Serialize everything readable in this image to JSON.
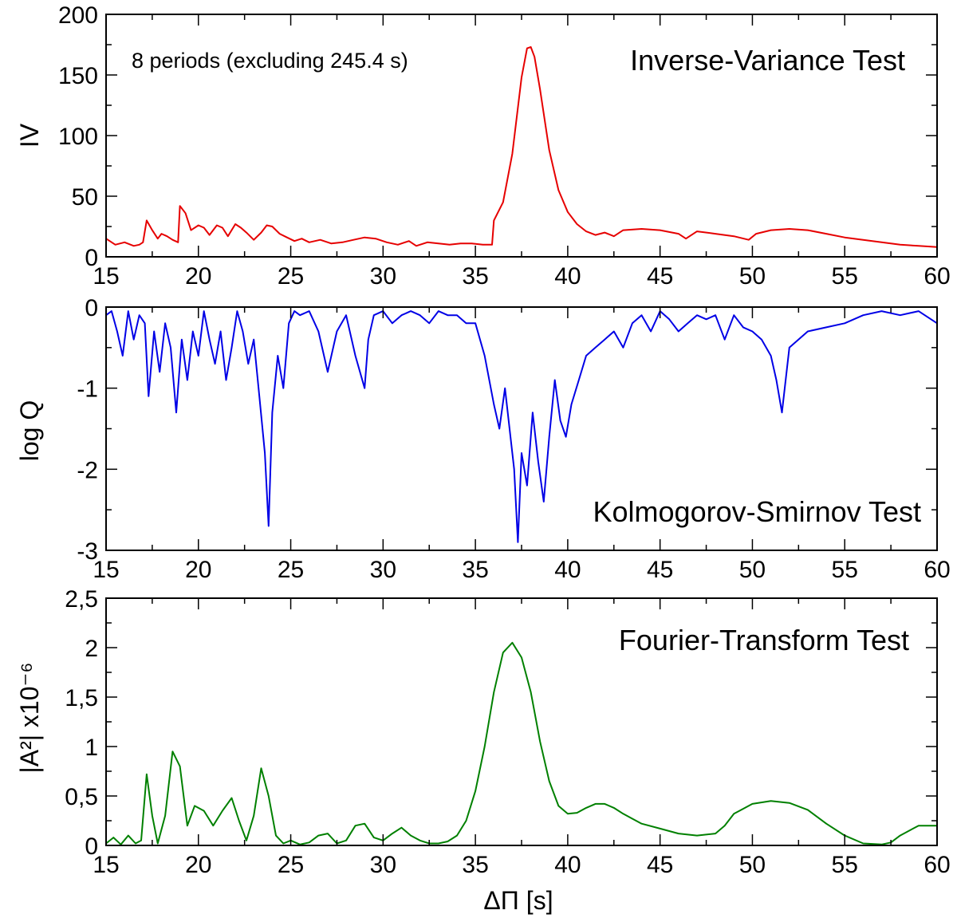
{
  "chart_data": [
    {
      "type": "line",
      "title": "Inverse-Variance Test",
      "annotation": "8 periods (excluding 245.4 s)",
      "xlabel": "",
      "ylabel": "IV",
      "xlim": [
        15,
        60
      ],
      "ylim": [
        0,
        200
      ],
      "xticks": [
        15,
        20,
        25,
        30,
        35,
        40,
        45,
        50,
        55,
        60
      ],
      "yticks": [
        0,
        50,
        100,
        150,
        200
      ],
      "ytick_labels": [
        "0",
        "50",
        "100",
        "150",
        "200"
      ],
      "color": "#e60000",
      "x": [
        15,
        15.5,
        16,
        16.5,
        16.8,
        17.0,
        17.2,
        17.5,
        17.8,
        18.0,
        18.3,
        18.6,
        18.9,
        19.0,
        19.3,
        19.6,
        20.0,
        20.3,
        20.6,
        21.0,
        21.3,
        21.6,
        22.0,
        22.3,
        22.6,
        23.0,
        23.4,
        23.7,
        24.0,
        24.4,
        24.8,
        25.2,
        25.6,
        26.0,
        26.6,
        27.2,
        27.8,
        28.4,
        29.0,
        29.6,
        30.2,
        30.8,
        31.4,
        31.8,
        32.4,
        33.0,
        33.6,
        34.2,
        34.8,
        35.4,
        35.9,
        36.0,
        36.5,
        37.0,
        37.5,
        37.8,
        38.0,
        38.2,
        38.5,
        39.0,
        39.5,
        40.0,
        40.5,
        41.0,
        41.5,
        42.0,
        42.5,
        43.0,
        44.0,
        45.0,
        46.0,
        46.4,
        47.0,
        48.0,
        49.0,
        49.8,
        50.2,
        51.0,
        52.0,
        53.0,
        54.0,
        55.0,
        56.0,
        57.0,
        58.0,
        59.0,
        60.0
      ],
      "y": [
        15,
        10,
        12,
        9,
        10,
        12,
        30,
        22,
        15,
        19,
        17,
        14,
        12,
        42,
        36,
        22,
        26,
        24,
        18,
        26,
        24,
        17,
        27,
        24,
        20,
        14,
        20,
        26,
        25,
        19,
        16,
        13,
        15,
        12,
        14,
        11,
        12,
        14,
        16,
        15,
        12,
        10,
        13,
        9,
        12,
        11,
        10,
        11,
        11,
        10,
        10,
        30,
        45,
        85,
        148,
        172,
        173,
        165,
        138,
        88,
        55,
        37,
        27,
        21,
        18,
        20,
        17,
        22,
        23,
        22,
        19,
        15,
        21,
        19,
        17,
        14,
        19,
        22,
        23,
        22,
        19,
        16,
        14,
        12,
        10,
        9,
        8
      ]
    },
    {
      "type": "line",
      "title": "Kolmogorov-Smirnov Test",
      "xlabel": "",
      "ylabel": "log Q",
      "xlim": [
        15,
        60
      ],
      "ylim": [
        -3,
        0
      ],
      "xticks": [
        15,
        20,
        25,
        30,
        35,
        40,
        45,
        50,
        55,
        60
      ],
      "yticks": [
        -3,
        -2,
        -1,
        0
      ],
      "ytick_labels": [
        "-3",
        "-2",
        "-1",
        "0"
      ],
      "color": "#0000e6",
      "x": [
        15.0,
        15.3,
        15.6,
        15.9,
        16.2,
        16.5,
        16.8,
        17.1,
        17.3,
        17.6,
        17.9,
        18.2,
        18.5,
        18.8,
        19.1,
        19.4,
        19.7,
        20.0,
        20.3,
        20.6,
        20.9,
        21.2,
        21.5,
        21.8,
        22.1,
        22.4,
        22.7,
        23.0,
        23.3,
        23.6,
        23.8,
        24.0,
        24.3,
        24.6,
        24.9,
        25.2,
        25.5,
        26.0,
        26.5,
        27.0,
        27.5,
        28.0,
        28.5,
        29.0,
        29.2,
        29.5,
        30.0,
        30.5,
        31.0,
        31.5,
        32.0,
        32.5,
        33.0,
        33.5,
        34.0,
        34.5,
        35.0,
        35.5,
        36.0,
        36.3,
        36.6,
        36.9,
        37.1,
        37.3,
        37.5,
        37.8,
        38.1,
        38.4,
        38.7,
        39.0,
        39.3,
        39.6,
        39.9,
        40.2,
        40.6,
        41.0,
        41.5,
        42.0,
        42.5,
        43.0,
        43.5,
        44.0,
        44.5,
        45.0,
        45.5,
        46.0,
        46.5,
        47.0,
        47.5,
        48.0,
        48.5,
        49.0,
        49.5,
        50.0,
        50.5,
        51.0,
        51.3,
        51.6,
        52.0,
        53.0,
        54.0,
        55.0,
        56.0,
        57.0,
        58.0,
        59.0,
        60.0
      ],
      "y": [
        -0.1,
        -0.05,
        -0.3,
        -0.6,
        -0.05,
        -0.4,
        -0.1,
        -0.2,
        -1.1,
        -0.3,
        -0.8,
        -0.2,
        -0.5,
        -1.3,
        -0.4,
        -0.9,
        -0.3,
        -0.6,
        -0.05,
        -0.4,
        -0.7,
        -0.3,
        -0.9,
        -0.5,
        -0.05,
        -0.3,
        -0.7,
        -0.4,
        -1.1,
        -1.8,
        -2.7,
        -1.3,
        -0.6,
        -1.0,
        -0.2,
        -0.05,
        -0.1,
        -0.05,
        -0.3,
        -0.8,
        -0.3,
        -0.1,
        -0.6,
        -1.0,
        -0.4,
        -0.1,
        -0.05,
        -0.2,
        -0.1,
        -0.05,
        -0.1,
        -0.2,
        -0.05,
        -0.1,
        -0.1,
        -0.2,
        -0.2,
        -0.6,
        -1.2,
        -1.5,
        -1.0,
        -1.6,
        -2.0,
        -2.9,
        -1.8,
        -2.2,
        -1.3,
        -1.9,
        -2.4,
        -1.6,
        -0.9,
        -1.4,
        -1.6,
        -1.2,
        -0.9,
        -0.6,
        -0.5,
        -0.4,
        -0.3,
        -0.5,
        -0.2,
        -0.1,
        -0.3,
        -0.05,
        -0.15,
        -0.3,
        -0.2,
        -0.1,
        -0.15,
        -0.1,
        -0.4,
        -0.1,
        -0.25,
        -0.3,
        -0.4,
        -0.6,
        -0.9,
        -1.3,
        -0.5,
        -0.3,
        -0.25,
        -0.2,
        -0.1,
        -0.05,
        -0.1,
        -0.05,
        -0.2
      ]
    },
    {
      "type": "line",
      "title": "Fourier-Transform Test",
      "xlabel": "ΔΠ [s]",
      "ylabel": "|A²| x10⁻⁶",
      "xlim": [
        15,
        60
      ],
      "ylim": [
        0,
        2.5
      ],
      "xticks": [
        15,
        20,
        25,
        30,
        35,
        40,
        45,
        50,
        55,
        60
      ],
      "yticks": [
        0,
        0.5,
        1,
        1.5,
        2,
        2.5
      ],
      "ytick_labels": [
        "0",
        "0,5",
        "1",
        "1,5",
        "2",
        "2,5"
      ],
      "color": "#008000",
      "x": [
        15.0,
        15.4,
        15.8,
        16.2,
        16.6,
        16.9,
        17.2,
        17.5,
        17.8,
        18.2,
        18.6,
        19.0,
        19.4,
        19.8,
        20.3,
        20.8,
        21.3,
        21.8,
        22.2,
        22.6,
        23.0,
        23.4,
        23.8,
        24.2,
        24.6,
        25.0,
        25.5,
        26.0,
        26.5,
        27.0,
        27.5,
        28.0,
        28.5,
        29.0,
        29.5,
        30.0,
        30.5,
        31.0,
        31.5,
        32.0,
        32.5,
        33.0,
        33.5,
        34.0,
        34.5,
        35.0,
        35.5,
        36.0,
        36.5,
        37.0,
        37.5,
        38.0,
        38.5,
        39.0,
        39.5,
        40.0,
        40.5,
        41.0,
        41.5,
        42.0,
        42.5,
        43.0,
        43.5,
        44.0,
        45.0,
        46.0,
        47.0,
        48.0,
        48.5,
        49.0,
        50.0,
        51.0,
        52.0,
        53.0,
        54.0,
        55.0,
        56.0,
        57.0,
        57.5,
        58.0,
        59.0,
        60.0
      ],
      "y": [
        0.02,
        0.08,
        0.01,
        0.1,
        0.02,
        0.05,
        0.72,
        0.3,
        0.02,
        0.3,
        0.95,
        0.8,
        0.2,
        0.4,
        0.35,
        0.2,
        0.35,
        0.48,
        0.25,
        0.05,
        0.3,
        0.78,
        0.5,
        0.1,
        0.02,
        0.05,
        0.01,
        0.03,
        0.1,
        0.12,
        0.02,
        0.05,
        0.2,
        0.22,
        0.08,
        0.05,
        0.12,
        0.18,
        0.1,
        0.05,
        0.02,
        0.02,
        0.04,
        0.1,
        0.25,
        0.55,
        1.0,
        1.55,
        1.95,
        2.05,
        1.9,
        1.55,
        1.05,
        0.65,
        0.4,
        0.32,
        0.33,
        0.38,
        0.42,
        0.42,
        0.38,
        0.32,
        0.27,
        0.22,
        0.17,
        0.12,
        0.1,
        0.12,
        0.2,
        0.32,
        0.42,
        0.45,
        0.43,
        0.36,
        0.22,
        0.1,
        0.02,
        0.01,
        0.03,
        0.1,
        0.2,
        0.2
      ]
    }
  ]
}
